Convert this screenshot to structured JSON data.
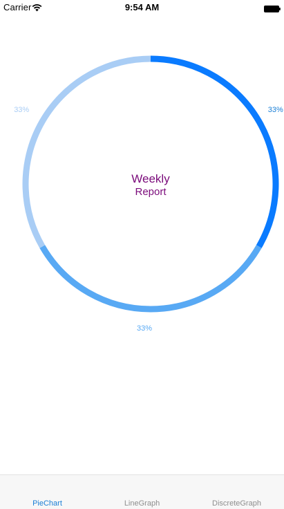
{
  "status_bar": {
    "carrier": "Carrier",
    "time": "9:54 AM",
    "wifi_icon": "wifi-icon",
    "battery_icon": "battery-full-icon"
  },
  "chart": {
    "center_title": "Weekly",
    "center_subtitle": "Report",
    "title_color": "#7a0a7a"
  },
  "chart_data": {
    "type": "pie",
    "style": "donut",
    "values": [
      33,
      33,
      33
    ],
    "labels": [
      "33%",
      "33%",
      "33%"
    ],
    "colors": [
      "#0a7bff",
      "#58a9f4",
      "#a9cdf5"
    ],
    "label_colors": [
      "#1a7fd6",
      "#58a9f4",
      "#a9cdf5"
    ]
  },
  "tab_bar": {
    "tabs": [
      {
        "label": "PieChart",
        "active": true
      },
      {
        "label": "LineGraph",
        "active": false
      },
      {
        "label": "DiscreteGraph",
        "active": false
      }
    ],
    "active_color": "#1a7fd6",
    "inactive_color": "#8e8e8e"
  }
}
